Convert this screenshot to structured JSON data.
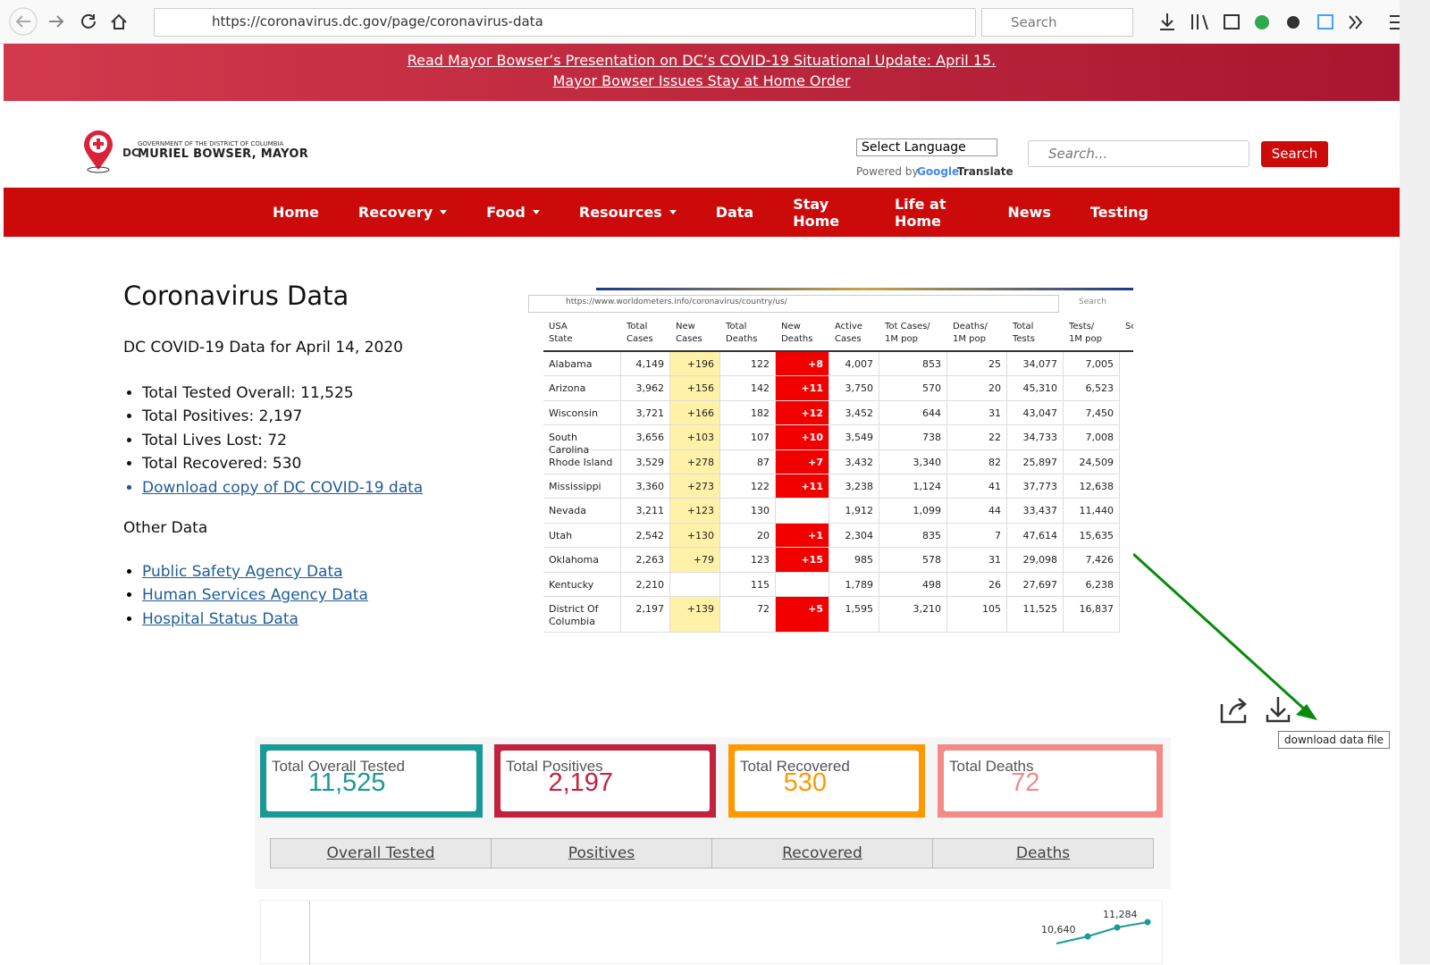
{
  "browser": {
    "url": "https://coronavirus.dc.gov/page/coronavirus-data",
    "search": "Search"
  },
  "banner": {
    "lines": [
      "Read Mayor Bowser’s Presentation on DC’s COVID-19 Situational Update: April 15.",
      "Mayor Bowser Issues Stay at Home Order"
    ]
  },
  "header": {
    "logo_top": "GOVERNMENT OF THE DISTRICT OF COLUMBIA",
    "logo_dc": "DC",
    "logo_name": "MURIEL BOWSER, MAYOR",
    "language": "Select Language",
    "powered_by": "Powered by",
    "google": "Google",
    "translate": "Translate",
    "search_placeholder": "Search...",
    "search_button": "Search"
  },
  "nav": {
    "items": [
      {
        "label": "Home",
        "dropdown": false
      },
      {
        "label": "Recovery",
        "dropdown": true
      },
      {
        "label": "Food",
        "dropdown": true
      },
      {
        "label": "Resources",
        "dropdown": true
      },
      {
        "label": "Data",
        "dropdown": false
      },
      {
        "label": "Stay Home",
        "dropdown": false
      },
      {
        "label": "Life at Home",
        "dropdown": false
      },
      {
        "label": "News",
        "dropdown": false
      },
      {
        "label": "Testing",
        "dropdown": false
      }
    ]
  },
  "content": {
    "title": "Coronavirus Data",
    "subtitle": "DC COVID-19 Data for April 14, 2020",
    "stats": [
      "Total Tested Overall: 11,525",
      "Total Positives: 2,197",
      "Total Lives Lost: 72",
      "Total Recovered: 530"
    ],
    "download_link": "Download copy of DC COVID-19 data",
    "other_title": "Other Data",
    "other_links": [
      "Public Safety Agency Data",
      "Human Services Agency Data",
      "Hospital Status Data"
    ]
  },
  "screenshot": {
    "url": "https://www.worldometers.info/coronavirus/country/us/",
    "search": "Search",
    "headers": [
      "USA\nState",
      "Total\nCases",
      "New\nCases",
      "Total\nDeaths",
      "New\nDeaths",
      "Active\nCases",
      "Tot Cases/\n1M pop",
      "Deaths/\n1M pop",
      "Total\nTests",
      "Tests/\n1M pop",
      "Sc"
    ],
    "rows": [
      [
        "Alabama",
        "4,149",
        "+196",
        "122",
        "+8",
        "4,007",
        "853",
        "25",
        "34,077",
        "7,005"
      ],
      [
        "Arizona",
        "3,962",
        "+156",
        "142",
        "+11",
        "3,750",
        "570",
        "20",
        "45,310",
        "6,523"
      ],
      [
        "Wisconsin",
        "3,721",
        "+166",
        "182",
        "+12",
        "3,452",
        "644",
        "31",
        "43,047",
        "7,450"
      ],
      [
        "South Carolina",
        "3,656",
        "+103",
        "107",
        "+10",
        "3,549",
        "738",
        "22",
        "34,733",
        "7,008"
      ],
      [
        "Rhode Island",
        "3,529",
        "+278",
        "87",
        "+7",
        "3,432",
        "3,340",
        "82",
        "25,897",
        "24,509"
      ],
      [
        "Mississippi",
        "3,360",
        "+273",
        "122",
        "+11",
        "3,238",
        "1,124",
        "41",
        "37,773",
        "12,638"
      ],
      [
        "Nevada",
        "3,211",
        "+123",
        "130",
        null,
        "1,912",
        "1,099",
        "44",
        "33,437",
        "11,440"
      ],
      [
        "Utah",
        "2,542",
        "+130",
        "20",
        "+1",
        "2,304",
        "835",
        "7",
        "47,614",
        "15,635"
      ],
      [
        "Oklahoma",
        "2,263",
        "+79",
        "123",
        "+15",
        "985",
        "578",
        "31",
        "29,098",
        "7,426"
      ],
      [
        "Kentucky",
        "2,210",
        null,
        "115",
        null,
        "1,789",
        "498",
        "26",
        "27,697",
        "6,238"
      ],
      [
        "District Of\nColumbia",
        "2,197",
        "+139",
        "72",
        "+5",
        "1,595",
        "3,210",
        "105",
        "11,525",
        "16,837"
      ]
    ]
  },
  "toolbar": {
    "tooltip": "download data file"
  },
  "cards": [
    {
      "label": "Total Overall Tested",
      "value": "11,525",
      "color": "#1a9a96"
    },
    {
      "label": "Total Positives",
      "value": "2,197",
      "color": "#c3223f"
    },
    {
      "label": "Total Recovered",
      "value": "530",
      "color": "#ff9900"
    },
    {
      "label": "Total Deaths",
      "value": "72",
      "color": "#f28b87"
    }
  ],
  "tabs": [
    "Overall Tested",
    "Positives",
    "Recovered",
    "Deaths"
  ],
  "chart_fragment": {
    "labels": [
      "10,640",
      "11,284"
    ]
  }
}
